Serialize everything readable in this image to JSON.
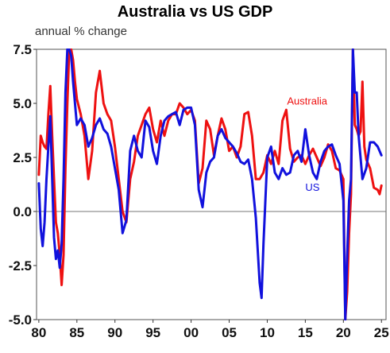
{
  "chart_data": {
    "type": "line",
    "title": "Australia vs US GDP",
    "subtitle": "annual % change",
    "xlabel": "",
    "ylabel": "",
    "xlim": [
      1979.7,
      2025.6
    ],
    "ylim": [
      -5.0,
      7.5
    ],
    "x_ticks": [
      1980,
      1985,
      1990,
      1995,
      2000,
      2005,
      2010,
      2015,
      2020,
      2025
    ],
    "x_tick_labels": [
      "80",
      "85",
      "90",
      "95",
      "00",
      "05",
      "10",
      "15",
      "20",
      "25"
    ],
    "y_ticks": [
      -5.0,
      -2.5,
      0.0,
      2.5,
      5.0,
      7.5
    ],
    "y_tick_labels": [
      "-5.0",
      "-2.5",
      "0.0",
      "2.5",
      "5.0",
      "7.5"
    ],
    "zero_line": true,
    "grid": false,
    "series": [
      {
        "name": "Australia",
        "color": "#ee1111",
        "x": [
          1980.0,
          1980.25,
          1980.5,
          1980.75,
          1981.0,
          1981.25,
          1981.5,
          1981.75,
          1982.0,
          1982.25,
          1982.5,
          1982.75,
          1983.0,
          1983.25,
          1983.5,
          1983.75,
          1984.0,
          1984.25,
          1984.5,
          1984.75,
          1985.0,
          1985.5,
          1986.0,
          1986.5,
          1987.0,
          1987.5,
          1988.0,
          1988.5,
          1989.0,
          1989.5,
          1990.0,
          1990.5,
          1991.0,
          1991.5,
          1992.0,
          1992.5,
          1993.0,
          1993.5,
          1994.0,
          1994.5,
          1995.0,
          1995.5,
          1996.0,
          1996.5,
          1997.0,
          1997.5,
          1998.0,
          1998.5,
          1999.0,
          1999.5,
          2000.0,
          2000.5,
          2001.0,
          2001.5,
          2002.0,
          2002.5,
          2003.0,
          2003.5,
          2004.0,
          2004.5,
          2005.0,
          2005.5,
          2006.0,
          2006.5,
          2007.0,
          2007.5,
          2008.0,
          2008.5,
          2009.0,
          2009.5,
          2010.0,
          2010.5,
          2011.0,
          2011.5,
          2012.0,
          2012.5,
          2013.0,
          2013.5,
          2014.0,
          2014.5,
          2015.0,
          2015.5,
          2016.0,
          2016.5,
          2017.0,
          2017.5,
          2018.0,
          2018.5,
          2019.0,
          2019.5,
          2020.0,
          2020.25,
          2020.5,
          2020.75,
          2021.0,
          2021.25,
          2021.5,
          2021.75,
          2022.0,
          2022.25,
          2022.5,
          2022.75,
          2023.0,
          2023.5,
          2024.0,
          2024.5,
          2024.75,
          2025.0
        ],
        "values": [
          1.7,
          3.5,
          3.2,
          3.0,
          2.9,
          4.5,
          5.8,
          3.5,
          1.5,
          -0.5,
          -1.0,
          -2.0,
          -3.4,
          -2.0,
          2.0,
          5.0,
          7.5,
          8.0,
          7.0,
          6.0,
          5.2,
          4.5,
          3.5,
          1.5,
          2.8,
          5.5,
          6.5,
          5.0,
          4.5,
          4.2,
          3.0,
          1.5,
          0.0,
          -0.5,
          1.5,
          2.3,
          3.5,
          4.0,
          4.5,
          4.8,
          3.8,
          3.2,
          4.2,
          3.5,
          4.2,
          4.5,
          4.5,
          5.0,
          4.8,
          4.5,
          4.7,
          4.2,
          1.3,
          2.0,
          4.2,
          3.8,
          2.6,
          3.5,
          4.3,
          3.8,
          2.8,
          3.0,
          2.5,
          3.0,
          4.5,
          4.6,
          3.5,
          1.5,
          1.5,
          1.8,
          2.6,
          2.2,
          2.8,
          2.2,
          4.2,
          4.7,
          2.9,
          2.3,
          2.5,
          2.6,
          2.2,
          2.6,
          2.9,
          2.5,
          2.1,
          2.5,
          3.1,
          2.8,
          2.0,
          1.9,
          1.5,
          -6.3,
          -3.7,
          -1.0,
          0.8,
          9.5,
          4.0,
          3.8,
          3.5,
          3.7,
          6.0,
          3.0,
          2.4,
          2.0,
          1.1,
          1.0,
          0.8,
          1.2
        ]
      },
      {
        "name": "US",
        "color": "#1111dd",
        "x": [
          1980.0,
          1980.25,
          1980.5,
          1980.75,
          1981.0,
          1981.25,
          1981.5,
          1981.75,
          1982.0,
          1982.25,
          1982.5,
          1982.75,
          1983.0,
          1983.25,
          1983.5,
          1983.75,
          1984.0,
          1984.25,
          1984.5,
          1984.75,
          1985.0,
          1985.5,
          1986.0,
          1986.5,
          1987.0,
          1987.5,
          1988.0,
          1988.5,
          1989.0,
          1989.5,
          1990.0,
          1990.5,
          1991.0,
          1991.5,
          1992.0,
          1992.5,
          1993.0,
          1993.5,
          1994.0,
          1994.5,
          1995.0,
          1995.5,
          1996.0,
          1996.5,
          1997.0,
          1997.5,
          1998.0,
          1998.5,
          1999.0,
          1999.5,
          2000.0,
          2000.5,
          2001.0,
          2001.5,
          2002.0,
          2002.5,
          2003.0,
          2003.5,
          2004.0,
          2004.5,
          2005.0,
          2005.5,
          2006.0,
          2006.5,
          2007.0,
          2007.5,
          2008.0,
          2008.5,
          2009.0,
          2009.25,
          2009.5,
          2010.0,
          2010.5,
          2011.0,
          2011.5,
          2012.0,
          2012.5,
          2013.0,
          2013.5,
          2014.0,
          2014.5,
          2015.0,
          2015.5,
          2016.0,
          2016.5,
          2017.0,
          2017.5,
          2018.0,
          2018.5,
          2019.0,
          2019.5,
          2020.0,
          2020.25,
          2020.5,
          2020.75,
          2021.0,
          2021.25,
          2021.5,
          2021.75,
          2022.0,
          2022.5,
          2023.0,
          2023.5,
          2024.0,
          2024.5,
          2025.0
        ],
        "values": [
          1.3,
          -0.8,
          -1.6,
          -0.5,
          1.5,
          3.0,
          4.4,
          1.5,
          -1.2,
          -2.2,
          -1.8,
          -2.6,
          -1.5,
          1.5,
          5.5,
          8.0,
          8.4,
          7.2,
          6.0,
          5.0,
          4.0,
          4.3,
          4.0,
          3.0,
          3.4,
          4.0,
          4.3,
          3.8,
          3.6,
          3.0,
          2.0,
          1.0,
          -1.0,
          -0.4,
          2.8,
          3.5,
          2.8,
          2.5,
          4.2,
          3.9,
          2.8,
          2.2,
          3.5,
          4.2,
          4.4,
          4.5,
          4.6,
          4.0,
          4.7,
          4.8,
          4.8,
          4.0,
          1.0,
          0.2,
          1.8,
          2.3,
          2.5,
          3.5,
          3.8,
          3.4,
          3.2,
          3.0,
          2.7,
          2.3,
          2.2,
          2.4,
          1.5,
          -0.3,
          -3.3,
          -4.0,
          -1.5,
          2.5,
          3.0,
          1.8,
          1.5,
          2.0,
          1.7,
          1.8,
          2.6,
          2.8,
          2.3,
          3.8,
          2.6,
          1.8,
          1.5,
          2.3,
          2.8,
          3.0,
          3.1,
          2.6,
          2.2,
          0.5,
          -5.0,
          -2.0,
          0.5,
          1.5,
          12.0,
          5.5,
          5.5,
          3.5,
          1.5,
          2.0,
          3.2,
          3.2,
          3.0,
          2.6
        ]
      }
    ],
    "annotations": [
      {
        "text": "Australia",
        "series": "Australia",
        "x": 2012.6,
        "y": 4.95
      },
      {
        "text": "US",
        "series": "US",
        "x": 2015.0,
        "y": 0.95
      }
    ]
  }
}
